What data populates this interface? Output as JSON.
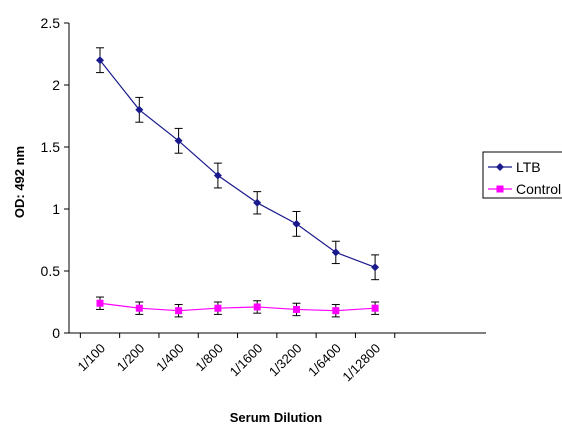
{
  "chart_data": {
    "type": "line",
    "categories": [
      "1/100",
      "1/200",
      "1/400",
      "1/800",
      "1/1600",
      "1/3200",
      "1/6400",
      "1/12800"
    ],
    "series": [
      {
        "name": "LTB",
        "color": "#1a1a8c",
        "marker": "diamond",
        "values": [
          2.2,
          1.8,
          1.55,
          1.27,
          1.05,
          0.88,
          0.65,
          0.53
        ],
        "errors": [
          0.1,
          0.1,
          0.1,
          0.1,
          0.09,
          0.1,
          0.09,
          0.1
        ]
      },
      {
        "name": "Control",
        "color": "#ff00ff",
        "marker": "square",
        "values": [
          0.24,
          0.2,
          0.18,
          0.2,
          0.21,
          0.19,
          0.18,
          0.2
        ],
        "errors": [
          0.05,
          0.05,
          0.05,
          0.05,
          0.05,
          0.05,
          0.05,
          0.05
        ]
      }
    ],
    "xlabel": "Serum Dilution",
    "ylabel": "OD: 492 nm",
    "ylim": [
      0,
      2.5
    ],
    "yticks": [
      "0",
      "0.5",
      "1",
      "1.5",
      "2",
      "2.5"
    ],
    "grid": false,
    "legend": "right"
  }
}
